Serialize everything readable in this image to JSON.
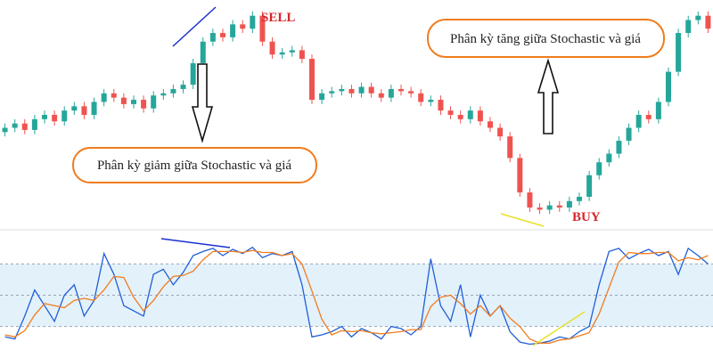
{
  "chart_data": [
    {
      "type": "candlestick",
      "up_color": "#26a69a",
      "down_color": "#ef5350",
      "ylim": [
        0,
        100
      ],
      "open": [
        42,
        44,
        46,
        43,
        48,
        50,
        47,
        52,
        54,
        50,
        56,
        60,
        58,
        55,
        57,
        53,
        59,
        60,
        62,
        64,
        74,
        84,
        88,
        86,
        92,
        90,
        96,
        84,
        78,
        79,
        80,
        76,
        57,
        60,
        61,
        62,
        60,
        63,
        60,
        58,
        62,
        61,
        60,
        56,
        57,
        52,
        50,
        48,
        52,
        47,
        44,
        40,
        30,
        14,
        7,
        6,
        8,
        7,
        10,
        12,
        22,
        28,
        32,
        38,
        44,
        50,
        48,
        56,
        70,
        88,
        94,
        96
      ],
      "high": [
        46,
        48,
        48,
        50,
        52,
        52,
        54,
        56,
        56,
        58,
        62,
        62,
        60,
        59,
        59,
        61,
        62,
        64,
        66,
        76,
        86,
        90,
        90,
        94,
        94,
        98,
        98,
        86,
        81,
        82,
        82,
        78,
        62,
        63,
        64,
        64,
        65,
        65,
        62,
        64,
        64,
        63,
        62,
        59,
        59,
        54,
        52,
        54,
        54,
        49,
        46,
        42,
        32,
        16,
        9,
        10,
        10,
        12,
        14,
        24,
        30,
        34,
        40,
        46,
        52,
        52,
        58,
        72,
        90,
        96,
        98,
        98
      ],
      "low": [
        40,
        42,
        41,
        41,
        46,
        45,
        45,
        50,
        48,
        48,
        54,
        56,
        53,
        53,
        51,
        51,
        57,
        58,
        60,
        62,
        72,
        82,
        84,
        84,
        88,
        88,
        82,
        76,
        76,
        77,
        74,
        55,
        55,
        58,
        59,
        58,
        58,
        58,
        56,
        56,
        59,
        58,
        54,
        54,
        50,
        48,
        46,
        46,
        45,
        42,
        38,
        28,
        12,
        5,
        4,
        4,
        5,
        5,
        8,
        10,
        20,
        26,
        30,
        36,
        42,
        46,
        46,
        54,
        68,
        86,
        92,
        88
      ],
      "close": [
        44,
        46,
        43,
        48,
        50,
        47,
        52,
        54,
        50,
        56,
        60,
        58,
        55,
        57,
        53,
        59,
        60,
        62,
        64,
        74,
        84,
        88,
        86,
        92,
        90,
        96,
        84,
        78,
        79,
        80,
        76,
        57,
        60,
        61,
        62,
        60,
        63,
        60,
        58,
        62,
        61,
        60,
        56,
        57,
        52,
        50,
        48,
        52,
        47,
        44,
        40,
        30,
        14,
        7,
        6,
        8,
        7,
        10,
        12,
        22,
        28,
        32,
        38,
        44,
        50,
        48,
        56,
        70,
        88,
        94,
        96,
        90
      ],
      "annotations": [
        "SELL",
        "BUY",
        "Phân kỳ giảm giữa Stochastic và giá",
        "Phân kỳ tăng giữa Stochastic và giá"
      ]
    },
    {
      "type": "line",
      "ylim": [
        0,
        100
      ],
      "levels": [
        20,
        50,
        80
      ],
      "band_color": "#e3f1fb",
      "series": [
        {
          "color": "#1f5fd6",
          "values": [
            10,
            8,
            30,
            55,
            40,
            25,
            50,
            60,
            30,
            45,
            90,
            70,
            40,
            35,
            30,
            70,
            75,
            60,
            72,
            88,
            92,
            95,
            88,
            94,
            90,
            96,
            86,
            90,
            88,
            92,
            60,
            10,
            12,
            15,
            20,
            10,
            18,
            14,
            8,
            20,
            18,
            12,
            20,
            85,
            40,
            25,
            60,
            10,
            50,
            30,
            40,
            15,
            5,
            3,
            4,
            6,
            10,
            8,
            15,
            20,
            60,
            92,
            95,
            85,
            90,
            94,
            88,
            92,
            70,
            95,
            88,
            80
          ]
        },
        {
          "color": "#f07c1e",
          "values": [
            12,
            10,
            16,
            31,
            42,
            40,
            38,
            45,
            47,
            45,
            55,
            68,
            67,
            48,
            35,
            45,
            58,
            68,
            69,
            73,
            84,
            92,
            92,
            92,
            91,
            93,
            91,
            91,
            88,
            90,
            80,
            54,
            27,
            12,
            16,
            15,
            16,
            14,
            13,
            14,
            15,
            17,
            17,
            39,
            48,
            50,
            42,
            32,
            40,
            30,
            40,
            28,
            20,
            8,
            4,
            4,
            7,
            8,
            11,
            14,
            32,
            57,
            82,
            91,
            90,
            90,
            91,
            91,
            83,
            86,
            84,
            88
          ]
        }
      ]
    }
  ]
}
